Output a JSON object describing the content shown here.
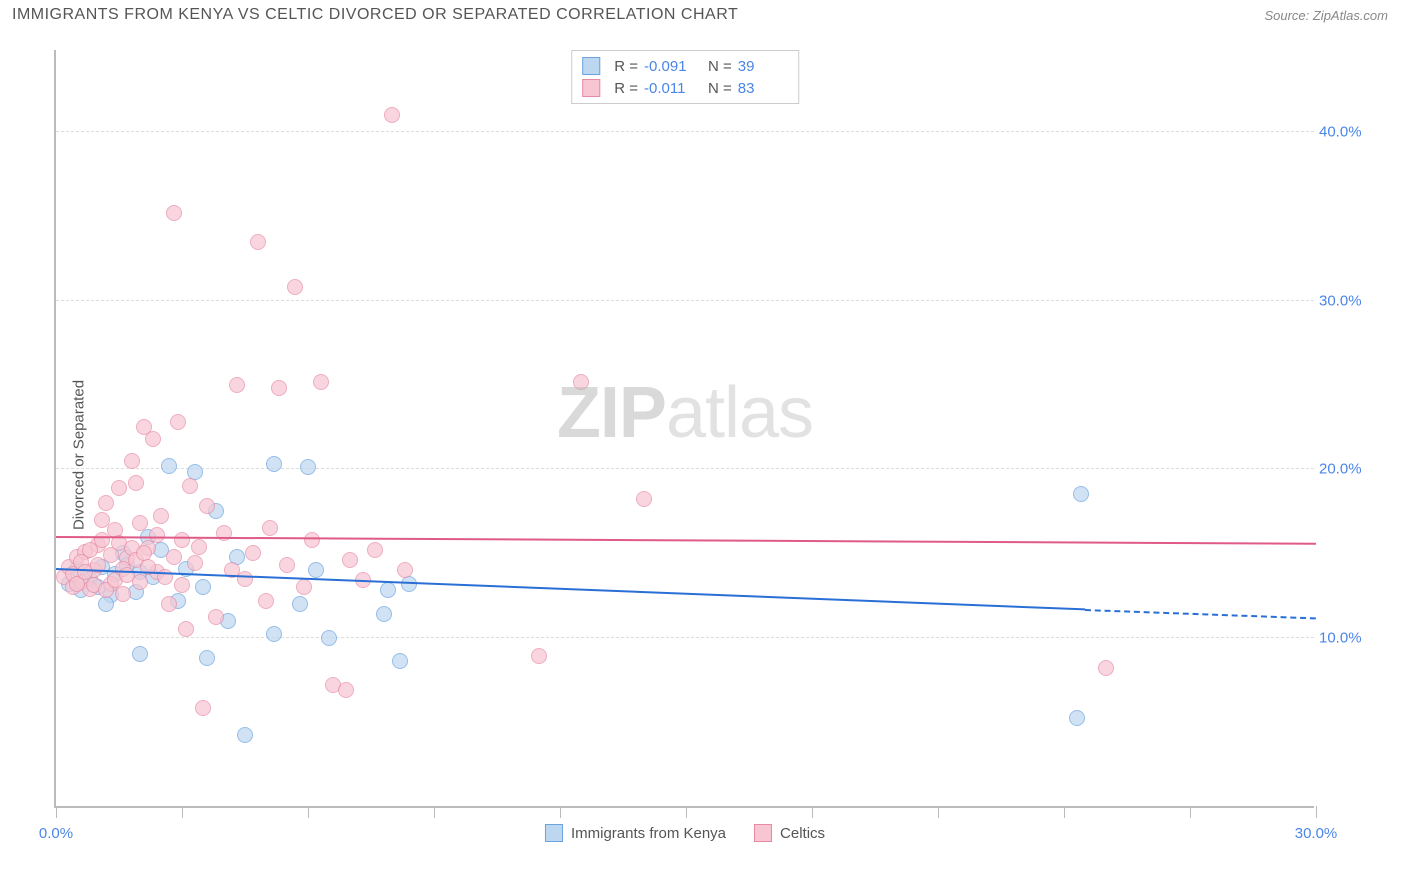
{
  "header": {
    "title": "IMMIGRANTS FROM KENYA VS CELTIC DIVORCED OR SEPARATED CORRELATION CHART",
    "source_prefix": "Source: ",
    "source_name": "ZipAtlas.com"
  },
  "chart": {
    "type": "scatter",
    "ylabel": "Divorced or Separated",
    "background_color": "#ffffff",
    "grid_color": "#dddddd",
    "axis_color": "#bbbbbb",
    "tick_label_color": "#4a86e8",
    "xlim": [
      0,
      30
    ],
    "ylim": [
      0,
      45
    ],
    "xticks": [
      0,
      3,
      6,
      9,
      12,
      15,
      18,
      21,
      24,
      27,
      30
    ],
    "xtick_labels": {
      "0": "0.0%",
      "30": "30.0%"
    },
    "yticks": [
      10,
      20,
      30,
      40
    ],
    "ytick_labels": {
      "10": "10.0%",
      "20": "20.0%",
      "30": "30.0%",
      "40": "40.0%"
    },
    "marker_radius": 8,
    "marker_opacity": 0.7,
    "watermark": {
      "bold": "ZIP",
      "light": "atlas"
    },
    "legend_top": {
      "r_label": "R =",
      "n_label": "N =",
      "rows": [
        {
          "swatch_fill": "#bdd7f0",
          "swatch_border": "#6aa3e0",
          "r": "-0.091",
          "n": "39"
        },
        {
          "swatch_fill": "#f7c6d2",
          "swatch_border": "#e88aa5",
          "r": "-0.011",
          "n": "83"
        }
      ]
    },
    "legend_bottom": [
      {
        "label": "Immigrants from Kenya",
        "swatch_fill": "#bdd7f0",
        "swatch_border": "#6aa3e0"
      },
      {
        "label": "Celtics",
        "swatch_fill": "#f7c6d2",
        "swatch_border": "#e88aa5"
      }
    ],
    "series": [
      {
        "name": "Immigrants from Kenya",
        "color_fill": "#bdd7f0",
        "color_border": "#6aa3e0",
        "trend_color": "#2a6fd6",
        "trend": {
          "x1": 0,
          "y1": 14.0,
          "x2": 24.5,
          "y2": 11.6,
          "dash_x2": 30,
          "dash_y2": 11.1
        },
        "points": [
          [
            0.3,
            13.2
          ],
          [
            0.5,
            14.1
          ],
          [
            0.6,
            12.8
          ],
          [
            0.8,
            13.5
          ],
          [
            1.0,
            13.0
          ],
          [
            1.1,
            14.2
          ],
          [
            1.3,
            12.5
          ],
          [
            1.4,
            13.8
          ],
          [
            1.6,
            15.0
          ],
          [
            1.7,
            14.3
          ],
          [
            1.9,
            12.7
          ],
          [
            2.0,
            13.9
          ],
          [
            2.2,
            16.0
          ],
          [
            2.3,
            13.6
          ],
          [
            2.5,
            15.2
          ],
          [
            2.7,
            20.2
          ],
          [
            2.9,
            12.2
          ],
          [
            3.1,
            14.1
          ],
          [
            3.3,
            19.8
          ],
          [
            3.5,
            13.0
          ],
          [
            3.8,
            17.5
          ],
          [
            3.6,
            8.8
          ],
          [
            4.1,
            11.0
          ],
          [
            4.3,
            14.8
          ],
          [
            4.5,
            4.2
          ],
          [
            5.2,
            20.3
          ],
          [
            5.2,
            10.2
          ],
          [
            5.8,
            12.0
          ],
          [
            6.0,
            20.1
          ],
          [
            6.2,
            14.0
          ],
          [
            6.5,
            10.0
          ],
          [
            7.8,
            11.4
          ],
          [
            7.9,
            12.8
          ],
          [
            8.2,
            8.6
          ],
          [
            8.4,
            13.2
          ],
          [
            24.4,
            18.5
          ],
          [
            24.3,
            5.2
          ],
          [
            2.0,
            9.0
          ],
          [
            1.2,
            12.0
          ]
        ]
      },
      {
        "name": "Celtics",
        "color_fill": "#f7c6d2",
        "color_border": "#e88aa5",
        "trend_color": "#e05a87",
        "trend": {
          "x1": 0,
          "y1": 15.9,
          "x2": 30,
          "y2": 15.5
        },
        "points": [
          [
            0.2,
            13.6
          ],
          [
            0.3,
            14.2
          ],
          [
            0.4,
            13.0
          ],
          [
            0.5,
            14.8
          ],
          [
            0.6,
            13.3
          ],
          [
            0.7,
            15.1
          ],
          [
            0.8,
            12.9
          ],
          [
            0.9,
            14.0
          ],
          [
            1.0,
            15.5
          ],
          [
            1.1,
            17.0
          ],
          [
            1.2,
            18.0
          ],
          [
            1.3,
            13.2
          ],
          [
            1.4,
            16.4
          ],
          [
            1.5,
            18.9
          ],
          [
            1.6,
            12.6
          ],
          [
            1.7,
            14.7
          ],
          [
            1.8,
            20.5
          ],
          [
            1.9,
            19.2
          ],
          [
            2.0,
            16.8
          ],
          [
            2.1,
            22.5
          ],
          [
            2.2,
            15.3
          ],
          [
            2.3,
            21.8
          ],
          [
            2.4,
            13.9
          ],
          [
            2.5,
            17.2
          ],
          [
            2.7,
            12.0
          ],
          [
            2.8,
            35.2
          ],
          [
            2.9,
            22.8
          ],
          [
            3.0,
            15.8
          ],
          [
            3.1,
            10.5
          ],
          [
            3.2,
            19.0
          ],
          [
            3.3,
            14.4
          ],
          [
            3.5,
            5.8
          ],
          [
            3.6,
            17.8
          ],
          [
            3.8,
            11.2
          ],
          [
            4.0,
            16.2
          ],
          [
            4.2,
            14.0
          ],
          [
            4.3,
            25.0
          ],
          [
            4.5,
            13.5
          ],
          [
            4.7,
            15.0
          ],
          [
            4.8,
            33.5
          ],
          [
            5.0,
            12.2
          ],
          [
            5.1,
            16.5
          ],
          [
            5.3,
            24.8
          ],
          [
            5.5,
            14.3
          ],
          [
            5.7,
            30.8
          ],
          [
            5.9,
            13.0
          ],
          [
            6.1,
            15.8
          ],
          [
            6.3,
            25.2
          ],
          [
            6.6,
            7.2
          ],
          [
            6.9,
            6.9
          ],
          [
            7.0,
            14.6
          ],
          [
            7.3,
            13.4
          ],
          [
            7.6,
            15.2
          ],
          [
            8.0,
            41.0
          ],
          [
            8.3,
            14.0
          ],
          [
            11.5,
            8.9
          ],
          [
            12.5,
            25.2
          ],
          [
            14.0,
            18.2
          ],
          [
            25.0,
            8.2
          ],
          [
            0.4,
            13.8
          ],
          [
            0.5,
            13.2
          ],
          [
            0.6,
            14.5
          ],
          [
            0.7,
            13.9
          ],
          [
            0.8,
            15.2
          ],
          [
            0.9,
            13.1
          ],
          [
            1.0,
            14.3
          ],
          [
            1.1,
            15.8
          ],
          [
            1.2,
            12.8
          ],
          [
            1.3,
            14.9
          ],
          [
            1.4,
            13.4
          ],
          [
            1.5,
            15.6
          ],
          [
            1.6,
            14.1
          ],
          [
            1.7,
            13.7
          ],
          [
            1.8,
            15.3
          ],
          [
            1.9,
            14.6
          ],
          [
            2.0,
            13.3
          ],
          [
            2.1,
            15.0
          ],
          [
            2.2,
            14.2
          ],
          [
            2.4,
            16.1
          ],
          [
            2.6,
            13.6
          ],
          [
            2.8,
            14.8
          ],
          [
            3.0,
            13.1
          ],
          [
            3.4,
            15.4
          ]
        ]
      }
    ]
  }
}
